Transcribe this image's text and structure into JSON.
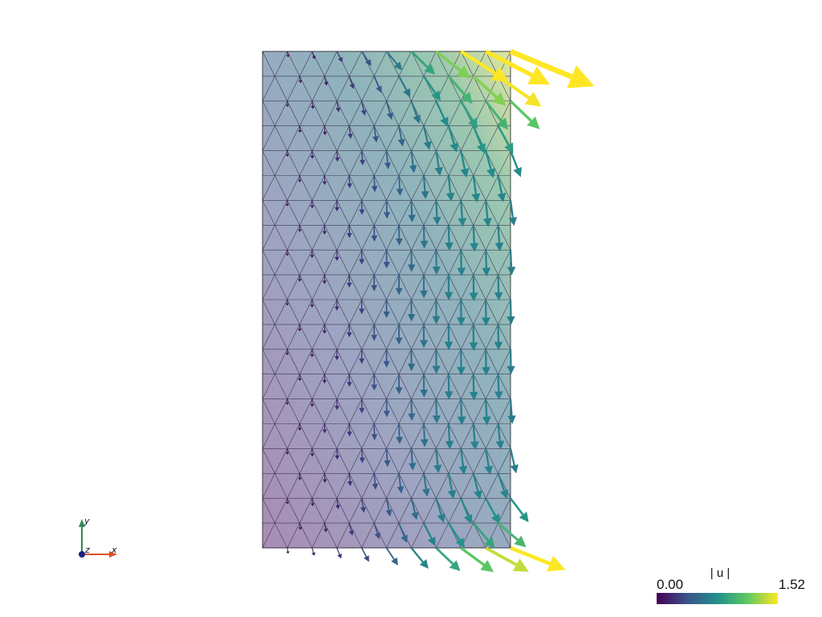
{
  "scene": {
    "title": "",
    "field_label": "| u |",
    "background": "#ffffff"
  },
  "colorbar": {
    "title": "| u |",
    "min_label": "0.00",
    "max_label": "1.52",
    "min": 0.0,
    "max": 1.52,
    "colormap": "viridis",
    "stops": [
      "#440154",
      "#3b528b",
      "#21918c",
      "#5ec962",
      "#fde725"
    ]
  },
  "domain": {
    "x_range": [
      0,
      1
    ],
    "y_range": [
      0,
      2
    ],
    "grid_nx": 10,
    "grid_ny": 20
  },
  "axes_widget": {
    "x_label": "x",
    "y_label": "y",
    "z_label": "z",
    "x_color": "#e0522e",
    "y_color": "#2e8a55",
    "z_color": "#1a237e"
  }
}
